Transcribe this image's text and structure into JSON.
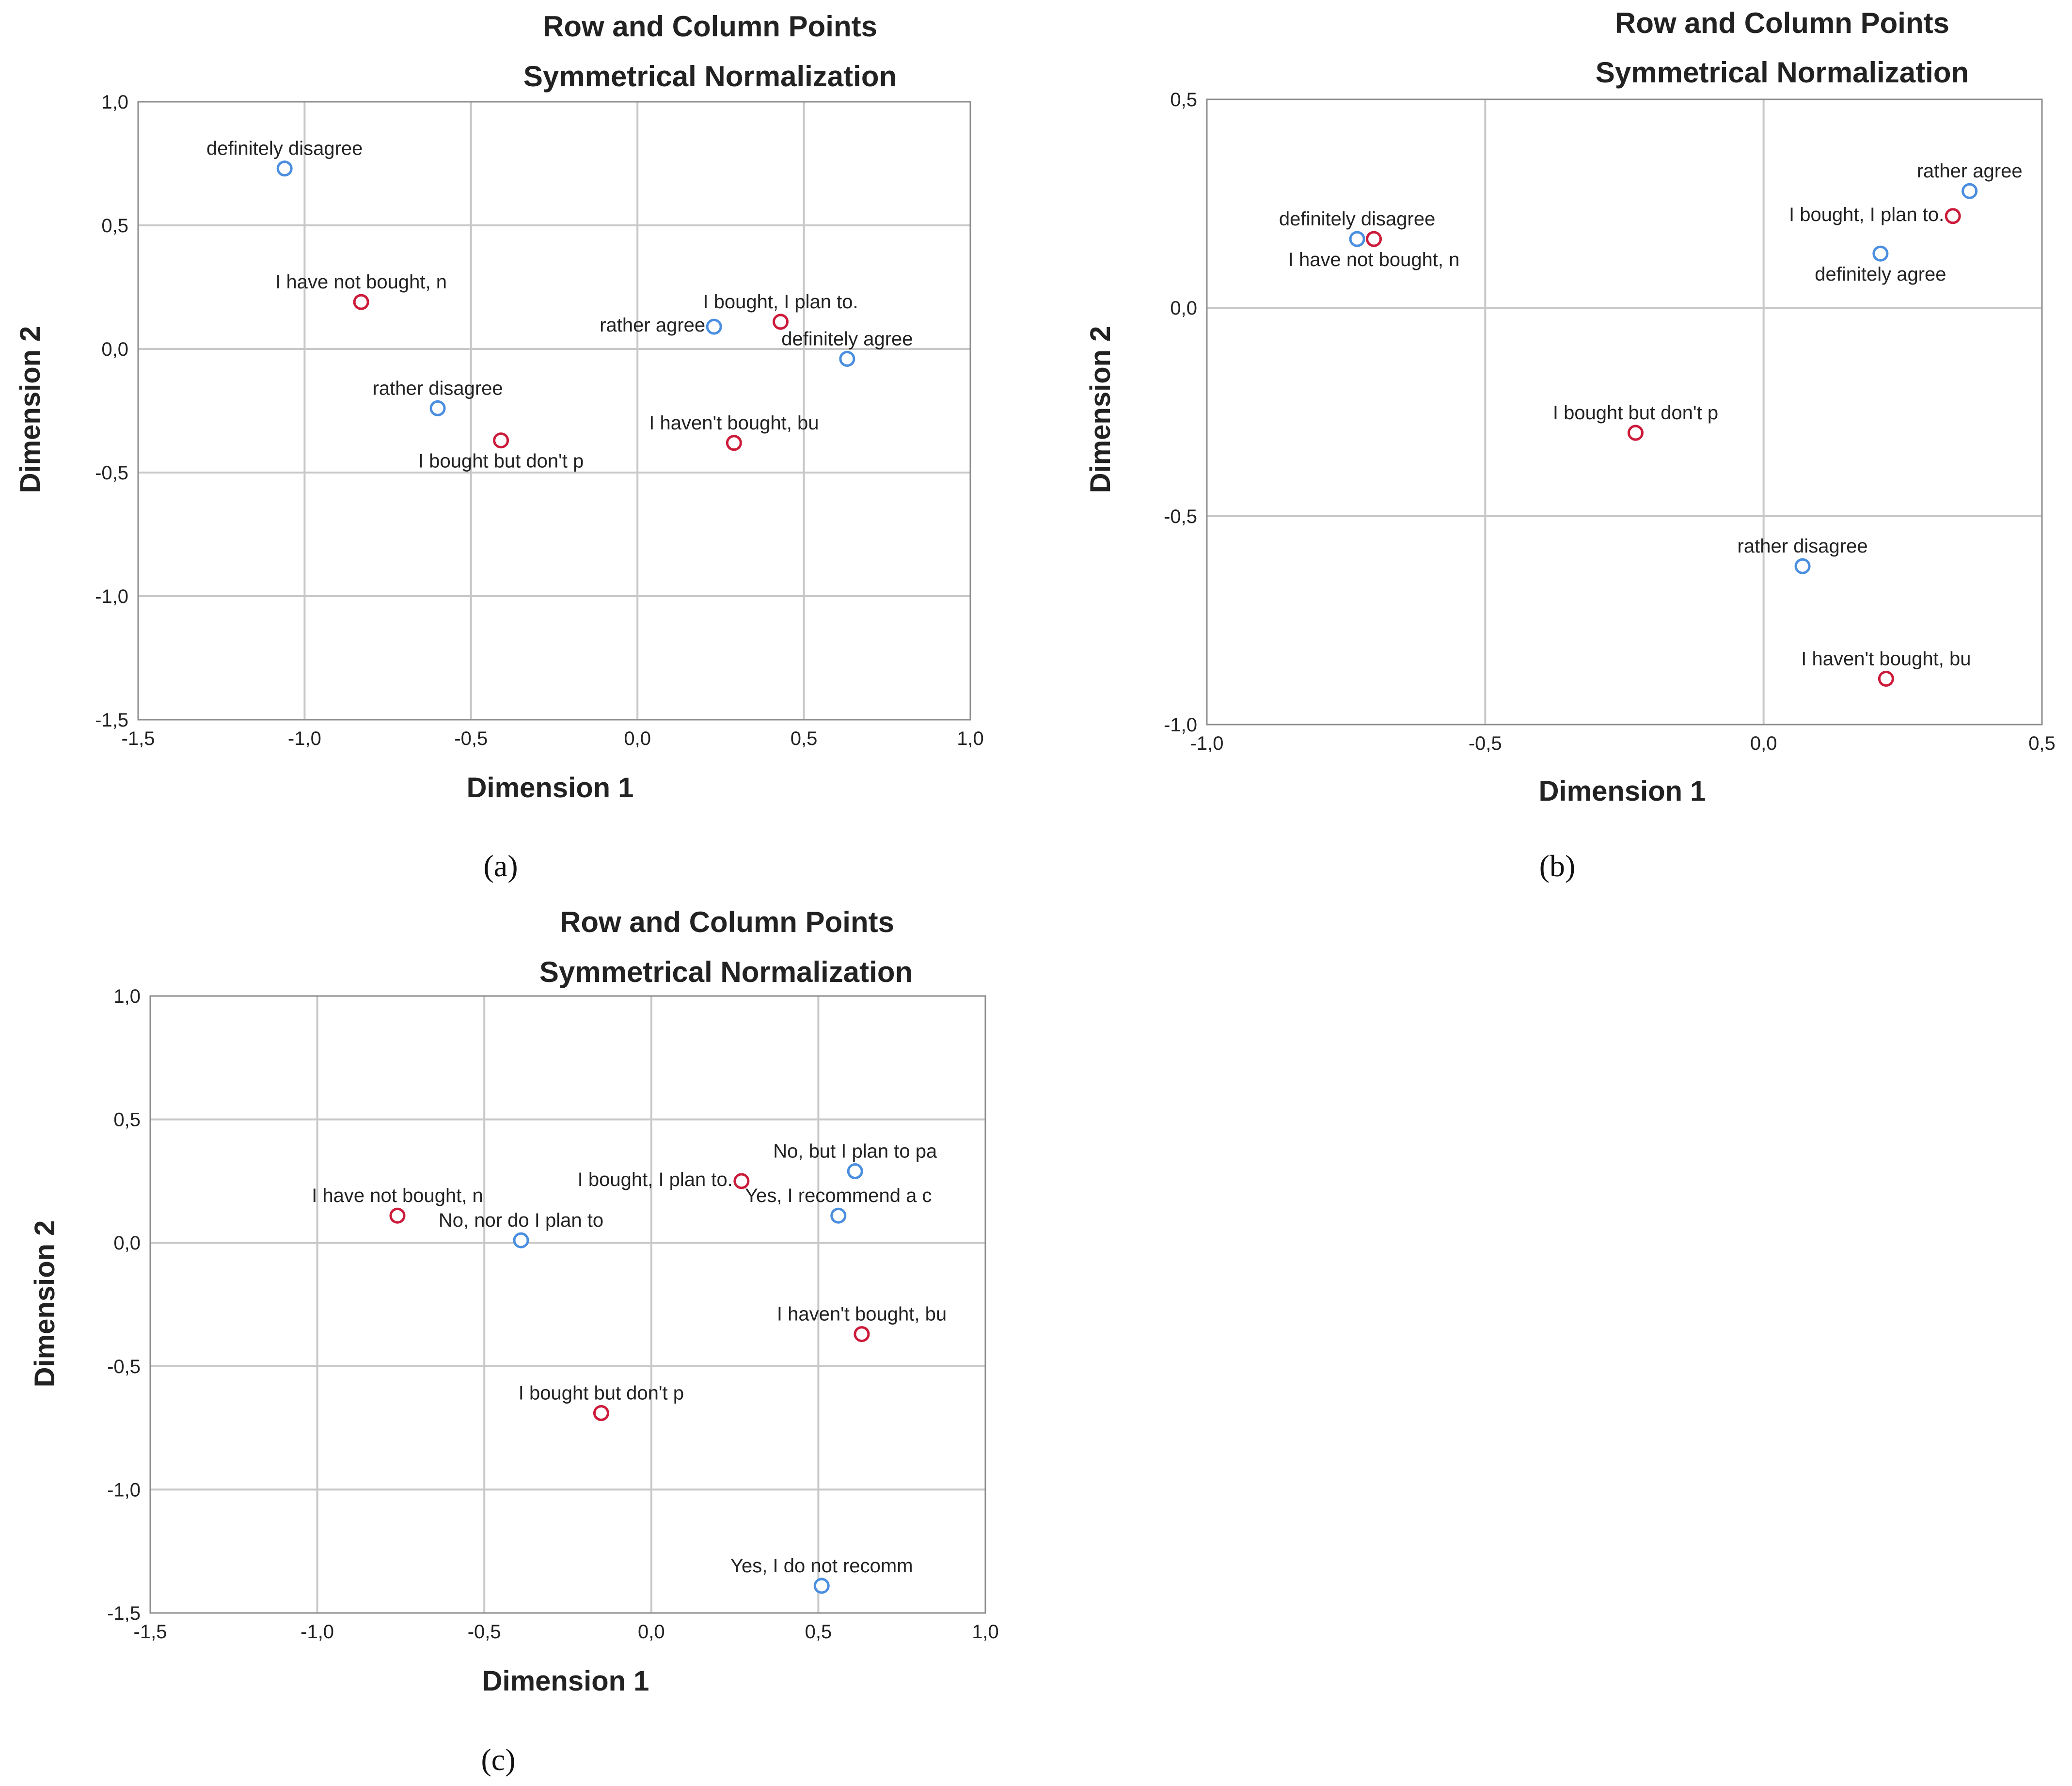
{
  "colors": {
    "row_point": "#cc1a3a",
    "column_point": "#4a8ee0",
    "grid": "#c8c8c8",
    "frame": "#8c8c8c"
  },
  "chart_data": [
    {
      "id": "a",
      "type": "scatter",
      "title": "Row and Column Points",
      "subtitle": "Symmetrical Normalization",
      "xlabel": "Dimension 1",
      "ylabel": "Dimension 2",
      "xlim": [
        -1.5,
        1.0
      ],
      "ylim": [
        -1.5,
        1.0
      ],
      "xticks": [
        -1.5,
        -1.0,
        -0.5,
        0.0,
        0.5,
        1.0
      ],
      "yticks": [
        -1.5,
        -1.0,
        -0.5,
        0.0,
        0.5,
        1.0
      ],
      "xtick_labels": [
        "-1,5",
        "-1,0",
        "-0,5",
        "0,0",
        "0,5",
        "1,0"
      ],
      "ytick_labels": [
        "-1,5",
        "-1,0",
        "-0,5",
        "0,0",
        "0,5",
        "1,0"
      ],
      "caption": "(a)",
      "grid": true,
      "points": [
        {
          "label": "definitely disagree",
          "x": -1.06,
          "y": 0.73,
          "kind": "column",
          "anchor": "above"
        },
        {
          "label": "I have not bought, n",
          "x": -0.83,
          "y": 0.19,
          "kind": "row",
          "anchor": "above"
        },
        {
          "label": "rather disagree",
          "x": -0.6,
          "y": -0.24,
          "kind": "column",
          "anchor": "above"
        },
        {
          "label": "I bought but don't p",
          "x": -0.41,
          "y": -0.37,
          "kind": "row",
          "anchor": "below"
        },
        {
          "label": "rather agree",
          "x": 0.23,
          "y": 0.09,
          "kind": "column",
          "anchor": "left"
        },
        {
          "label": "I bought, I plan to.",
          "x": 0.43,
          "y": 0.11,
          "kind": "row",
          "anchor": "above"
        },
        {
          "label": "definitely agree",
          "x": 0.63,
          "y": -0.04,
          "kind": "column",
          "anchor": "above"
        },
        {
          "label": "I haven't bought, bu",
          "x": 0.29,
          "y": -0.38,
          "kind": "row",
          "anchor": "above"
        }
      ]
    },
    {
      "id": "b",
      "type": "scatter",
      "title": "Row and Column Points",
      "subtitle": "Symmetrical Normalization",
      "xlabel": "Dimension 1",
      "ylabel": "Dimension 2",
      "xlim": [
        -1.0,
        0.5
      ],
      "ylim": [
        -1.0,
        0.5
      ],
      "xticks": [
        -1.0,
        -0.5,
        0.0,
        0.5
      ],
      "yticks": [
        -1.0,
        -0.5,
        0.0,
        0.5
      ],
      "xtick_labels": [
        "-1,0",
        "-0,5",
        "0,0",
        "0,5"
      ],
      "ytick_labels": [
        "-1,0",
        "-0,5",
        "0,0",
        "0,5"
      ],
      "caption": "(b)",
      "grid": true,
      "points": [
        {
          "label": "definitely disagree",
          "x": -0.73,
          "y": 0.165,
          "kind": "column",
          "anchor": "above"
        },
        {
          "label": "I have not bought, n",
          "x": -0.7,
          "y": 0.165,
          "kind": "row",
          "anchor": "below"
        },
        {
          "label": "rather agree",
          "x": 0.37,
          "y": 0.28,
          "kind": "column",
          "anchor": "above"
        },
        {
          "label": "I bought, I plan to.",
          "x": 0.34,
          "y": 0.22,
          "kind": "row",
          "anchor": "left"
        },
        {
          "label": "definitely agree",
          "x": 0.21,
          "y": 0.13,
          "kind": "column",
          "anchor": "below"
        },
        {
          "label": "I bought but don't p",
          "x": -0.23,
          "y": -0.3,
          "kind": "row",
          "anchor": "above"
        },
        {
          "label": "rather disagree",
          "x": 0.07,
          "y": -0.62,
          "kind": "column",
          "anchor": "above"
        },
        {
          "label": "I haven't bought, bu",
          "x": 0.22,
          "y": -0.89,
          "kind": "row",
          "anchor": "above"
        }
      ]
    },
    {
      "id": "c",
      "type": "scatter",
      "title": "Row and Column Points",
      "subtitle": "Symmetrical Normalization",
      "xlabel": "Dimension 1",
      "ylabel": "Dimension 2",
      "xlim": [
        -1.5,
        1.0
      ],
      "ylim": [
        -1.5,
        1.0
      ],
      "xticks": [
        -1.5,
        -1.0,
        -0.5,
        0.0,
        0.5,
        1.0
      ],
      "yticks": [
        -1.5,
        -1.0,
        -0.5,
        0.0,
        0.5,
        1.0
      ],
      "xtick_labels": [
        "-1,5",
        "-1,0",
        "-0,5",
        "0,0",
        "0,5",
        "1,0"
      ],
      "ytick_labels": [
        "-1,5",
        "-1,0",
        "-0,5",
        "0,0",
        "0,5",
        "1,0"
      ],
      "caption": "(c)",
      "grid": true,
      "points": [
        {
          "label": "I have not bought, n",
          "x": -0.76,
          "y": 0.11,
          "kind": "row",
          "anchor": "above"
        },
        {
          "label": "No, nor do I plan to",
          "x": -0.39,
          "y": 0.01,
          "kind": "column",
          "anchor": "above"
        },
        {
          "label": "I bought, I plan to.",
          "x": 0.27,
          "y": 0.25,
          "kind": "row",
          "anchor": "left"
        },
        {
          "label": "No, but I plan to pa",
          "x": 0.61,
          "y": 0.29,
          "kind": "column",
          "anchor": "above"
        },
        {
          "label": "Yes, I recommend a c",
          "x": 0.56,
          "y": 0.11,
          "kind": "column",
          "anchor": "above"
        },
        {
          "label": "I haven't bought, bu",
          "x": 0.63,
          "y": -0.37,
          "kind": "row",
          "anchor": "above"
        },
        {
          "label": "I bought but don't p",
          "x": -0.15,
          "y": -0.69,
          "kind": "row",
          "anchor": "above"
        },
        {
          "label": "Yes, I do not recomm",
          "x": 0.51,
          "y": -1.39,
          "kind": "column",
          "anchor": "above"
        }
      ]
    }
  ]
}
